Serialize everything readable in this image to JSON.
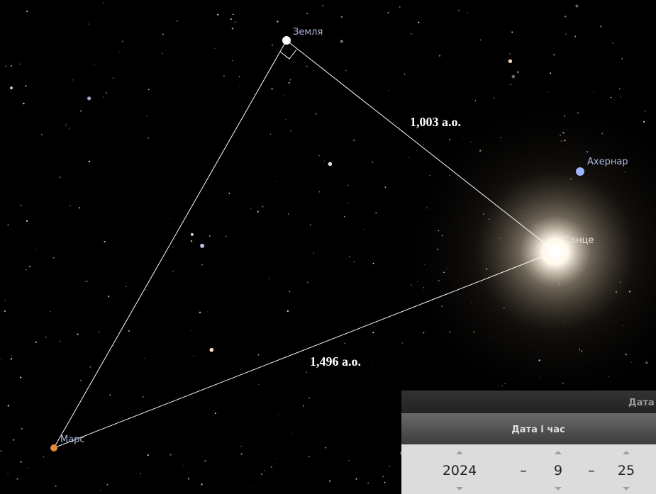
{
  "sky": {
    "labels": {
      "earth": "Земля",
      "achernar": "Ахернар",
      "sun": "Сонце",
      "mars": "Марс"
    },
    "distances": {
      "earth_sun": "1,003 а.о.",
      "mars_sun": "1,496 а.о."
    }
  },
  "dialog": {
    "title": "Дата",
    "tab": "Дата і час",
    "date": {
      "year": "2024",
      "month": "9",
      "day": "25",
      "separators": [
        "–",
        "–"
      ]
    }
  }
}
